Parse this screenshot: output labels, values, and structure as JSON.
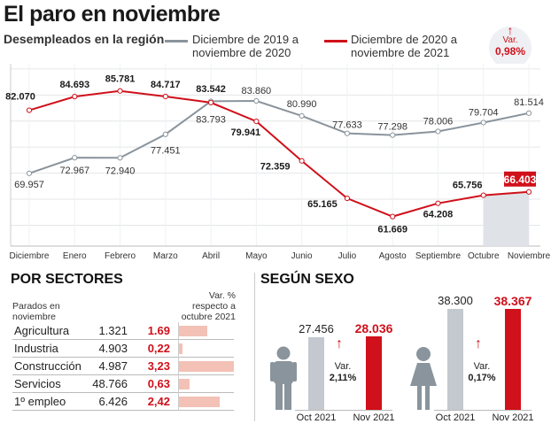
{
  "header": {
    "title": "El paro en noviembre",
    "subtitle": "Desempleados en la región"
  },
  "legend": {
    "gray": "Diciembre de 2019 a noviembre de 2020",
    "gray_l1": "Diciembre de 2019 a",
    "gray_l2": "noviembre de 2020",
    "red_l1": "Diciembre de 2020 a",
    "red_l2": "noviembre de 2021"
  },
  "variation": {
    "label": "Var.",
    "value": "0,98%",
    "arrow": "arrow-up-icon"
  },
  "colors": {
    "red": "#d0101a",
    "gray": "#8a949c",
    "bar_gray": "#c3c9ce",
    "bar_pink": "#f3c1b6"
  },
  "chart_data": [
    {
      "type": "line",
      "categories": [
        "Diciembre",
        "Enero",
        "Febrero",
        "Marzo",
        "Abril",
        "Mayo",
        "Junio",
        "Julio",
        "Agosto",
        "Septiembre",
        "Octubre",
        "Noviembre"
      ],
      "ylim": [
        56,
        91
      ],
      "grid": true,
      "legend": "top",
      "series": [
        {
          "name": "Diciembre de 2019 a noviembre de 2020",
          "color": "#8a949c",
          "values": [
            69.957,
            72.967,
            72.94,
            77.451,
            83.793,
            83.86,
            80.99,
            77.633,
            77.298,
            78.006,
            79.704,
            81.514
          ],
          "labels": [
            "69.957",
            "72.967",
            "72.940",
            "77.451",
            "83.793",
            "83.860",
            "80.990",
            "77.633",
            "77.298",
            "78.006",
            "79.704",
            "81.514"
          ]
        },
        {
          "name": "Diciembre de 2020 a noviembre de 2021",
          "color": "#d0101a",
          "values": [
            82.07,
            84.693,
            85.781,
            84.717,
            83.542,
            79.941,
            72.359,
            65.165,
            61.669,
            64.208,
            65.756,
            66.403
          ],
          "labels": [
            "82.070",
            "84.693",
            "85.781",
            "84.717",
            "83.542",
            "79.941",
            "72.359",
            "65.165",
            "61.669",
            "64.208",
            "65.756",
            "66.403"
          ]
        }
      ]
    },
    {
      "type": "table",
      "title": "POR SECTORES",
      "col1": "Parados en noviembre",
      "col1_l1": "Parados en",
      "col1_l2": "noviembre",
      "col2_l1": "Var. %",
      "col2_l2": "respecto a",
      "col2_l3": "octubre 2021",
      "rows": [
        {
          "sector": "Agricultura",
          "parados": "1.321",
          "var": "1.69",
          "v": 1.69
        },
        {
          "sector": "Industria",
          "parados": "4.903",
          "var": "0,22",
          "v": 0.22
        },
        {
          "sector": "Construcción",
          "parados": "4.987",
          "var": "3,23",
          "v": 3.23
        },
        {
          "sector": "Servicios",
          "parados": "48.766",
          "var": "0,63",
          "v": 0.63
        },
        {
          "sector": "1º empleo",
          "parados": "6.426",
          "var": "2,42",
          "v": 2.42
        }
      ]
    },
    {
      "type": "bar",
      "title": "SEGÚN SEXO",
      "categories": [
        "Oct 2021",
        "Nov 2021"
      ],
      "groups": [
        {
          "icon": "man-icon",
          "values": [
            27456,
            28036
          ],
          "labels": [
            "27.456",
            "28.036"
          ],
          "var_label": "Var.",
          "var": "2,11%"
        },
        {
          "icon": "woman-icon",
          "values": [
            38300,
            38367
          ],
          "labels": [
            "38.300",
            "38.367"
          ],
          "var_label": "Var.",
          "var": "0,17%"
        }
      ]
    }
  ]
}
